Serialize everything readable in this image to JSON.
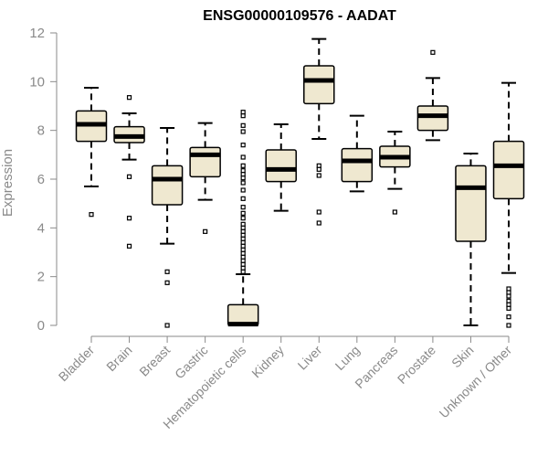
{
  "chart_data": {
    "type": "boxplot",
    "title": "ENSG00000109576 - AADAT",
    "xlabel": "",
    "ylabel": "Expression",
    "ylim": [
      0,
      12
    ],
    "yticks": [
      "0",
      "2",
      "4",
      "6",
      "8",
      "10",
      "12"
    ],
    "grid": false,
    "colors": {
      "box_fill": "#efe8d0",
      "box_stroke": "#000000",
      "median": "#000000",
      "axis": "#8a8a8a"
    },
    "categories": [
      "Bladder",
      "Brain",
      "Breast",
      "Gastric",
      "Hematopoietic cells",
      "Kidney",
      "Liver",
      "Lung",
      "Pancreas",
      "Prostate",
      "Skin",
      "Unknown / Other"
    ],
    "boxes": [
      {
        "min": 5.7,
        "q1": 7.55,
        "median": 8.25,
        "q3": 8.8,
        "max": 9.75,
        "outliers": [
          4.55
        ]
      },
      {
        "min": 6.8,
        "q1": 7.5,
        "median": 7.75,
        "q3": 8.15,
        "max": 8.7,
        "outliers": [
          9.35,
          6.1,
          4.4,
          3.25
        ]
      },
      {
        "min": 3.35,
        "q1": 4.95,
        "median": 6.0,
        "q3": 6.55,
        "max": 8.1,
        "outliers": [
          2.2,
          1.75,
          0.0
        ]
      },
      {
        "min": 5.15,
        "q1": 6.1,
        "median": 7.0,
        "q3": 7.3,
        "max": 8.3,
        "outliers": [
          3.85
        ]
      },
      {
        "min": 0.0,
        "q1": 0.0,
        "median": 0.05,
        "q3": 0.85,
        "max": 2.1,
        "outliers": [
          8.75,
          8.6,
          8.2,
          7.95,
          7.4,
          6.9,
          6.55,
          6.35,
          6.2,
          6.05,
          5.85,
          5.55,
          5.2,
          4.85,
          4.6,
          4.4,
          4.15,
          4.0,
          3.85,
          3.7,
          3.55,
          3.4,
          3.25,
          3.1,
          2.95,
          2.8,
          2.65,
          2.5,
          2.35,
          2.2
        ]
      },
      {
        "min": 4.7,
        "q1": 5.9,
        "median": 6.4,
        "q3": 7.2,
        "max": 8.25,
        "outliers": []
      },
      {
        "min": 7.65,
        "q1": 9.1,
        "median": 10.05,
        "q3": 10.65,
        "max": 11.75,
        "outliers": [
          6.55,
          6.4,
          6.15,
          4.65,
          4.2
        ]
      },
      {
        "min": 5.5,
        "q1": 5.9,
        "median": 6.75,
        "q3": 7.25,
        "max": 8.6,
        "outliers": []
      },
      {
        "min": 5.6,
        "q1": 6.5,
        "median": 6.9,
        "q3": 7.35,
        "max": 7.95,
        "outliers": [
          4.65
        ]
      },
      {
        "min": 7.6,
        "q1": 8.0,
        "median": 8.6,
        "q3": 9.0,
        "max": 10.15,
        "outliers": [
          11.2
        ]
      },
      {
        "min": 0.0,
        "q1": 3.45,
        "median": 5.65,
        "q3": 6.55,
        "max": 7.05,
        "outliers": []
      },
      {
        "min": 2.15,
        "q1": 5.2,
        "median": 6.55,
        "q3": 7.55,
        "max": 9.95,
        "outliers": [
          1.5,
          1.35,
          1.2,
          1.0,
          0.85,
          0.7,
          0.35,
          0.0
        ]
      }
    ]
  }
}
